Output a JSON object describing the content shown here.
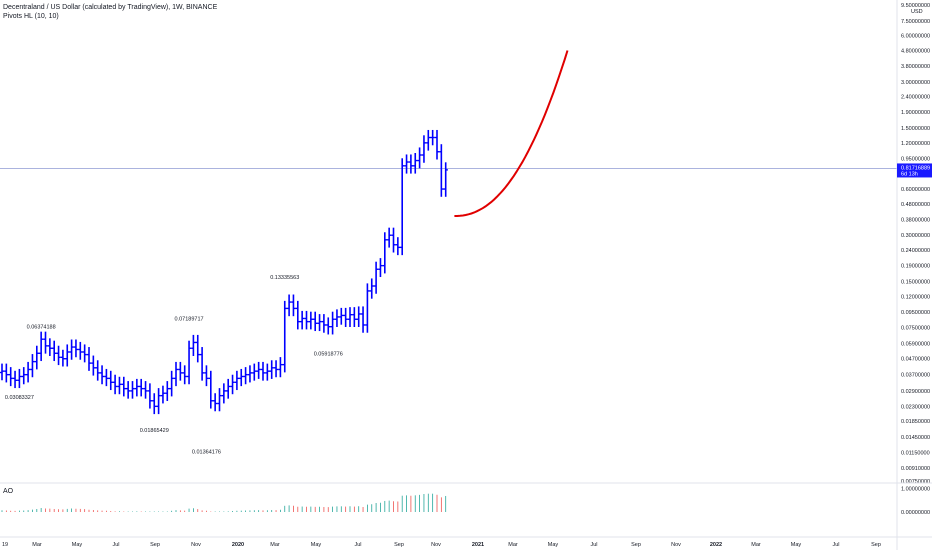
{
  "header": {
    "symbol_title": "Decentraland / US Dollar (calculated by TradingView), 1W, BINANCE",
    "indicator": "Pivots HL (10, 10)",
    "ao_label": "AO"
  },
  "price_scale": {
    "top_label": "9.50000000",
    "currency": "USD",
    "current_price": "0.81716889",
    "countdown": "6d 13h"
  },
  "colors": {
    "bars": "#0000ff",
    "projection": "#e00000",
    "price_line": "#9fa8da",
    "price_tag_bg": "#1a1aff",
    "ao_up": "#26a69a",
    "ao_down": "#ef5350"
  },
  "chart_data": {
    "type": "ohlc",
    "scale": "log",
    "ylim": [
      0.0075,
      9.5
    ],
    "y_ticks": [
      {
        "label": "9.50000000",
        "v": 9.5
      },
      {
        "label": "7.50000000",
        "v": 7.5
      },
      {
        "label": "6.00000000",
        "v": 6.0
      },
      {
        "label": "4.80000000",
        "v": 4.8
      },
      {
        "label": "3.80000000",
        "v": 3.8
      },
      {
        "label": "3.00000000",
        "v": 3.0
      },
      {
        "label": "2.40000000",
        "v": 2.4
      },
      {
        "label": "1.90000000",
        "v": 1.9
      },
      {
        "label": "1.50000000",
        "v": 1.5
      },
      {
        "label": "1.20000000",
        "v": 1.2
      },
      {
        "label": "0.95000000",
        "v": 0.95
      },
      {
        "label": "0.60000000",
        "v": 0.6
      },
      {
        "label": "0.48000000",
        "v": 0.48
      },
      {
        "label": "0.38000000",
        "v": 0.38
      },
      {
        "label": "0.30000000",
        "v": 0.3
      },
      {
        "label": "0.24000000",
        "v": 0.24
      },
      {
        "label": "0.19000000",
        "v": 0.19
      },
      {
        "label": "0.15000000",
        "v": 0.15
      },
      {
        "label": "0.12000000",
        "v": 0.12
      },
      {
        "label": "0.09500000",
        "v": 0.095
      },
      {
        "label": "0.07500000",
        "v": 0.075
      },
      {
        "label": "0.05900000",
        "v": 0.059
      },
      {
        "label": "0.04700000",
        "v": 0.047
      },
      {
        "label": "0.03700000",
        "v": 0.037
      },
      {
        "label": "0.02900000",
        "v": 0.029
      },
      {
        "label": "0.02300000",
        "v": 0.023
      },
      {
        "label": "0.01850000",
        "v": 0.0185
      },
      {
        "label": "0.01450000",
        "v": 0.0145
      },
      {
        "label": "0.01150000",
        "v": 0.0115
      },
      {
        "label": "0.00910000",
        "v": 0.0091
      },
      {
        "label": "0.00750000",
        "v": 0.0075
      }
    ],
    "x_labels": [
      "19",
      "Mar",
      "May",
      "Jul",
      "Sep",
      "Nov",
      "2020",
      "Mar",
      "May",
      "Jul",
      "Sep",
      "Nov",
      "2021",
      "Mar",
      "May",
      "Jul",
      "Sep",
      "Nov",
      "2022",
      "Mar",
      "May",
      "Jul",
      "Sep"
    ],
    "weekly_closes": [
      0.039,
      0.037,
      0.035,
      0.034,
      0.036,
      0.037,
      0.04,
      0.045,
      0.051,
      0.063,
      0.057,
      0.055,
      0.051,
      0.048,
      0.047,
      0.052,
      0.056,
      0.054,
      0.052,
      0.05,
      0.044,
      0.041,
      0.038,
      0.036,
      0.035,
      0.033,
      0.031,
      0.032,
      0.03,
      0.029,
      0.03,
      0.031,
      0.03,
      0.029,
      0.025,
      0.023,
      0.027,
      0.028,
      0.03,
      0.035,
      0.04,
      0.038,
      0.036,
      0.055,
      0.06,
      0.05,
      0.038,
      0.035,
      0.025,
      0.024,
      0.027,
      0.029,
      0.031,
      0.033,
      0.035,
      0.036,
      0.037,
      0.038,
      0.039,
      0.04,
      0.038,
      0.039,
      0.041,
      0.04,
      0.043,
      0.1,
      0.11,
      0.1,
      0.082,
      0.086,
      0.082,
      0.085,
      0.08,
      0.082,
      0.078,
      0.076,
      0.085,
      0.088,
      0.09,
      0.085,
      0.091,
      0.085,
      0.092,
      0.078,
      0.13,
      0.14,
      0.18,
      0.19,
      0.28,
      0.3,
      0.26,
      0.25,
      0.85,
      0.9,
      0.85,
      0.92,
      1.0,
      1.2,
      1.3,
      1.3,
      1.05,
      0.6,
      0.8
    ],
    "pivots": [
      {
        "label": "0.06374188",
        "kind": "high",
        "v": 0.0637,
        "week": 9
      },
      {
        "label": "0.03083327",
        "kind": "low",
        "v": 0.0308,
        "week": 4
      },
      {
        "label": "0.01865429",
        "kind": "low",
        "v": 0.0187,
        "week": 35
      },
      {
        "label": "0.07189717",
        "kind": "high",
        "v": 0.0719,
        "week": 43
      },
      {
        "label": "0.01364176",
        "kind": "low",
        "v": 0.0136,
        "week": 47
      },
      {
        "label": "0.13335563",
        "kind": "high",
        "v": 0.1334,
        "week": 65
      },
      {
        "label": "0.05918776",
        "kind": "low",
        "v": 0.0592,
        "week": 75
      }
    ],
    "projection_curve": {
      "from_week": 104,
      "to_week": 130,
      "start_value": 0.4,
      "end_value": 4.8
    },
    "ao": {
      "ylim": [
        -0.2,
        1.1
      ],
      "ticks": [
        {
          "label": "1.00000000",
          "v": 1.0
        },
        {
          "label": "0.00000000",
          "v": 0.0
        }
      ]
    }
  }
}
